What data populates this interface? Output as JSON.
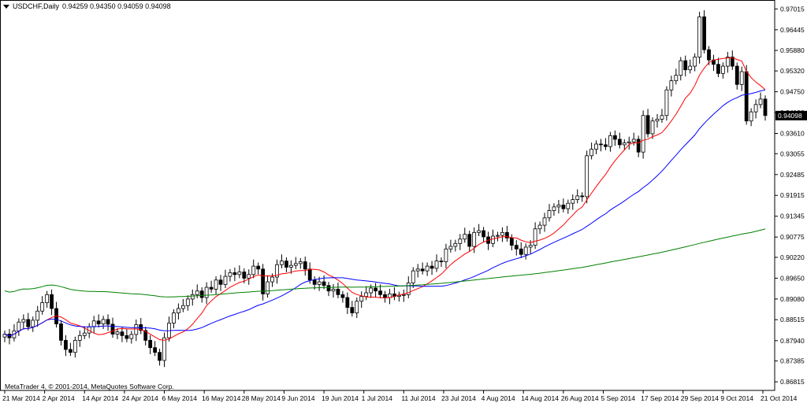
{
  "header": {
    "symbol": "USDCHF,Daily",
    "ohlc": "0.94259 0.94350 0.94059 0.94098"
  },
  "footer": {
    "copyright": "MetaTrader 4, © 2001-2014, MetaQuotes Software Corp."
  },
  "chart_data": {
    "type": "candlestick",
    "ylim": [
      0.8658,
      0.9726
    ],
    "y_ticks": [
      "0.97015",
      "0.96445",
      "0.95880",
      "0.95320",
      "0.94750",
      "0.94180",
      "0.93610",
      "0.93055",
      "0.92485",
      "0.91915",
      "0.91345",
      "0.90775",
      "0.90220",
      "0.89650",
      "0.89080",
      "0.88515",
      "0.87940",
      "0.87385",
      "0.86815"
    ],
    "x_ticks": [
      "21 Mar 2014",
      "2 Apr 2014",
      "14 Apr 2014",
      "24 Apr 2014",
      "6 May 2014",
      "16 May 2014",
      "28 May 2014",
      "9 Jun 2014",
      "19 Jun 2014",
      "1 Jul 2014",
      "11 Jul 2014",
      "23 Jul 2014",
      "4 Aug 2014",
      "14 Aug 2014",
      "26 Aug 2014",
      "5 Sep 2014",
      "17 Sep 2014",
      "29 Sep 2014",
      "9 Oct 2014",
      "21 Oct 2014"
    ],
    "current_price": "0.94098",
    "closes": [
      0.8812,
      0.8802,
      0.8821,
      0.8845,
      0.8852,
      0.8832,
      0.885,
      0.8875,
      0.8898,
      0.892,
      0.8882,
      0.884,
      0.8795,
      0.877,
      0.8762,
      0.8795,
      0.8808,
      0.8815,
      0.8832,
      0.8848,
      0.884,
      0.8852,
      0.8839,
      0.8812,
      0.8818,
      0.8808,
      0.88,
      0.8811,
      0.8838,
      0.8822,
      0.8795,
      0.8775,
      0.8762,
      0.874,
      0.8802,
      0.8842,
      0.887,
      0.8882,
      0.889,
      0.8908,
      0.892,
      0.893,
      0.8912,
      0.894,
      0.8935,
      0.896,
      0.8948,
      0.897,
      0.898,
      0.8975,
      0.8982,
      0.8965,
      0.8975,
      0.8998,
      0.899,
      0.8922,
      0.8955,
      0.8968,
      0.9002,
      0.9012,
      0.8995,
      0.9,
      0.9005,
      0.901,
      0.899,
      0.896,
      0.8948,
      0.8955,
      0.8945,
      0.893,
      0.8935,
      0.892,
      0.8912,
      0.8885,
      0.887,
      0.8902,
      0.8915,
      0.8925,
      0.8938,
      0.893,
      0.892,
      0.8912,
      0.8922,
      0.8915,
      0.8918,
      0.892,
      0.8952,
      0.8985,
      0.899,
      0.8985,
      0.8998,
      0.8992,
      0.9012,
      0.901,
      0.9045,
      0.9052,
      0.906,
      0.9072,
      0.9085,
      0.9052,
      0.909,
      0.9095,
      0.9078,
      0.906,
      0.908,
      0.9082,
      0.909,
      0.9075,
      0.9055,
      0.9045,
      0.903,
      0.905,
      0.9055,
      0.91,
      0.911,
      0.913,
      0.915,
      0.916,
      0.9165,
      0.9155,
      0.917,
      0.918,
      0.919,
      0.9188,
      0.93,
      0.9318,
      0.9332,
      0.933,
      0.9325,
      0.9355,
      0.9345,
      0.933,
      0.9335,
      0.9338,
      0.9345,
      0.931,
      0.941,
      0.936,
      0.9395,
      0.94,
      0.941,
      0.948,
      0.9505,
      0.952,
      0.956,
      0.9535,
      0.9545,
      0.957,
      0.968,
      0.959,
      0.9562,
      0.955,
      0.9525,
      0.9545,
      0.957,
      0.9545,
      0.9495,
      0.953,
      0.9395,
      0.942,
      0.944,
      0.9455,
      0.941
    ],
    "series": [
      {
        "name": "",
        "color": "#ff0000",
        "values": []
      },
      {
        "name": "",
        "color": "#0000ff",
        "values": []
      },
      {
        "name": "",
        "color": "#008000",
        "values": []
      }
    ]
  }
}
